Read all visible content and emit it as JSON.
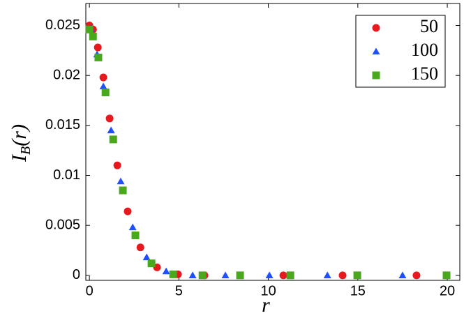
{
  "chart_data": {
    "type": "scatter",
    "xlabel": "r",
    "ylabel": {
      "main": "I",
      "sub": "B",
      "rest": "(r)"
    },
    "xlim": [
      -0.2,
      20.7
    ],
    "ylim": [
      -0.0005,
      0.0272
    ],
    "xticks": [
      0,
      5,
      10,
      15,
      20
    ],
    "yticks": [
      0,
      0.005,
      0.01,
      0.015,
      0.02,
      0.025
    ],
    "legend": "upper right",
    "series": [
      {
        "name": "50",
        "color": "#e8191e",
        "marker": "circle",
        "x": [
          0,
          0.2,
          0.47,
          0.78,
          1.13,
          1.56,
          2.14,
          2.85,
          3.78,
          4.95,
          6.43,
          10.84,
          14.15,
          18.28
        ],
        "values": [
          0.025,
          0.0246,
          0.0228,
          0.0198,
          0.0157,
          0.011,
          0.0064,
          0.0028,
          0.0008,
          0.0001,
          0,
          0,
          0,
          0
        ]
      },
      {
        "name": "100",
        "color": "#1f4fff",
        "marker": "triangle",
        "x": [
          0.08,
          0.43,
          0.78,
          1.21,
          1.75,
          2.42,
          3.2,
          4.29,
          5.77,
          7.6,
          10.06,
          13.3,
          17.5
        ],
        "values": [
          0.0247,
          0.0221,
          0.0189,
          0.0145,
          0.0094,
          0.0048,
          0.0018,
          0.0004,
          0,
          0,
          0,
          0,
          0
        ]
      },
      {
        "name": "150",
        "color": "#4aa81d",
        "marker": "square",
        "x": [
          0,
          0.2,
          0.5,
          0.9,
          1.33,
          1.87,
          2.57,
          3.47,
          4.68,
          6.32,
          8.42,
          11.23,
          14.97,
          19.96
        ],
        "values": [
          0.0246,
          0.0239,
          0.0218,
          0.0183,
          0.0136,
          0.0085,
          0.004,
          0.0012,
          0.0001,
          0,
          0,
          0,
          0,
          0
        ]
      }
    ]
  }
}
